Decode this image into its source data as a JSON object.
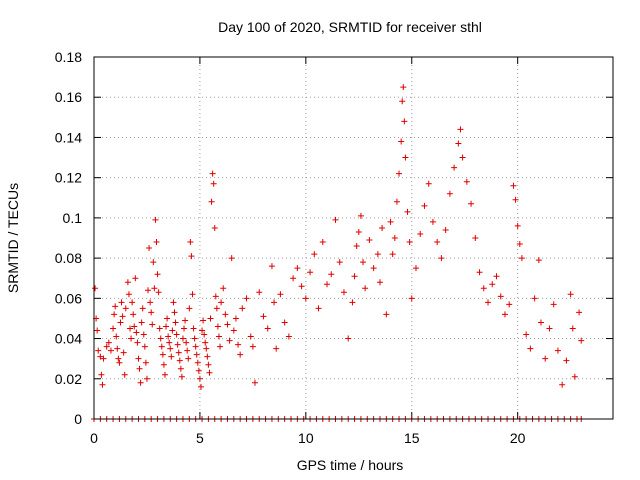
{
  "chart_data": {
    "type": "scatter",
    "title": "Day 100 of 2020, SRMTID for receiver sthl",
    "xlabel": "GPS time / hours",
    "ylabel": "SRMTID / TECUs",
    "xlim": [
      0,
      24.5
    ],
    "ylim": [
      0,
      0.18
    ],
    "xticks": [
      0,
      5,
      10,
      15,
      20
    ],
    "xtick_labels": [
      "0",
      "5",
      "10",
      "15",
      "20"
    ],
    "yticks": [
      0,
      0.02,
      0.04,
      0.06,
      0.08,
      0.1,
      0.12,
      0.14,
      0.16,
      0.18
    ],
    "ytick_labels": [
      "0",
      "0.02",
      "0.04",
      "0.06",
      "0.08",
      "0.1",
      "0.12",
      "0.14",
      "0.16",
      "0.18"
    ],
    "grid": true,
    "marker": "+",
    "color": "#e00000",
    "series": [
      {
        "name": "SRMTID",
        "points": [
          [
            0.05,
            0.065
          ],
          [
            0.1,
            0.05
          ],
          [
            0.15,
            0.044
          ],
          [
            0.2,
            0.034
          ],
          [
            0.3,
            0.031
          ],
          [
            0.35,
            0.022
          ],
          [
            0.4,
            0.017
          ],
          [
            0.45,
            0.03
          ],
          [
            0.6,
            0.036
          ],
          [
            0.7,
            0.038
          ],
          [
            0.8,
            0.034
          ],
          [
            0.9,
            0.045
          ],
          [
            0.95,
            0.052
          ],
          [
            1.0,
            0.056
          ],
          [
            1.05,
            0.041
          ],
          [
            1.1,
            0.035
          ],
          [
            1.15,
            0.03
          ],
          [
            1.2,
            0.028
          ],
          [
            1.25,
            0.048
          ],
          [
            1.3,
            0.058
          ],
          [
            1.35,
            0.051
          ],
          [
            1.4,
            0.033
          ],
          [
            1.45,
            0.022
          ],
          [
            1.5,
            0.055
          ],
          [
            1.6,
            0.068
          ],
          [
            1.65,
            0.062
          ],
          [
            1.7,
            0.045
          ],
          [
            1.75,
            0.04
          ],
          [
            1.8,
            0.058
          ],
          [
            1.85,
            0.052
          ],
          [
            1.9,
            0.046
          ],
          [
            1.95,
            0.07
          ],
          [
            2.0,
            0.043
          ],
          [
            2.05,
            0.038
          ],
          [
            2.1,
            0.03
          ],
          [
            2.15,
            0.025
          ],
          [
            2.2,
            0.018
          ],
          [
            2.25,
            0.048
          ],
          [
            2.3,
            0.055
          ],
          [
            2.35,
            0.042
          ],
          [
            2.4,
            0.036
          ],
          [
            2.45,
            0.028
          ],
          [
            2.5,
            0.02
          ],
          [
            2.55,
            0.064
          ],
          [
            2.6,
            0.085
          ],
          [
            2.65,
            0.058
          ],
          [
            2.7,
            0.053
          ],
          [
            2.75,
            0.047
          ],
          [
            2.8,
            0.078
          ],
          [
            2.85,
            0.065
          ],
          [
            2.9,
            0.099
          ],
          [
            2.95,
            0.088
          ],
          [
            3.0,
            0.072
          ],
          [
            3.05,
            0.063
          ],
          [
            3.1,
            0.045
          ],
          [
            3.15,
            0.04
          ],
          [
            3.2,
            0.036
          ],
          [
            3.25,
            0.032
          ],
          [
            3.3,
            0.027
          ],
          [
            3.35,
            0.022
          ],
          [
            3.4,
            0.046
          ],
          [
            3.45,
            0.05
          ],
          [
            3.5,
            0.041
          ],
          [
            3.55,
            0.038
          ],
          [
            3.6,
            0.035
          ],
          [
            3.65,
            0.031
          ],
          [
            3.7,
            0.044
          ],
          [
            3.75,
            0.058
          ],
          [
            3.8,
            0.053
          ],
          [
            3.85,
            0.048
          ],
          [
            3.9,
            0.042
          ],
          [
            3.95,
            0.037
          ],
          [
            4.0,
            0.033
          ],
          [
            4.05,
            0.029
          ],
          [
            4.1,
            0.025
          ],
          [
            4.15,
            0.021
          ],
          [
            4.2,
            0.04
          ],
          [
            4.25,
            0.045
          ],
          [
            4.3,
            0.049
          ],
          [
            4.35,
            0.038
          ],
          [
            4.4,
            0.034
          ],
          [
            4.45,
            0.03
          ],
          [
            4.5,
            0.055
          ],
          [
            4.55,
            0.088
          ],
          [
            4.6,
            0.081
          ],
          [
            4.65,
            0.062
          ],
          [
            4.7,
            0.045
          ],
          [
            4.75,
            0.04
          ],
          [
            4.8,
            0.036
          ],
          [
            4.85,
            0.032
          ],
          [
            4.9,
            0.028
          ],
          [
            4.95,
            0.024
          ],
          [
            5.0,
            0.02
          ],
          [
            5.05,
            0.016
          ],
          [
            5.1,
            0.044
          ],
          [
            5.15,
            0.049
          ],
          [
            5.2,
            0.042
          ],
          [
            5.25,
            0.038
          ],
          [
            5.3,
            0.035
          ],
          [
            5.35,
            0.031
          ],
          [
            5.4,
            0.027
          ],
          [
            5.45,
            0.023
          ],
          [
            5.5,
            0.05
          ],
          [
            5.55,
            0.108
          ],
          [
            5.6,
            0.122
          ],
          [
            5.65,
            0.117
          ],
          [
            5.7,
            0.095
          ],
          [
            5.75,
            0.061
          ],
          [
            5.8,
            0.055
          ],
          [
            5.85,
            0.046
          ],
          [
            5.9,
            0.041
          ],
          [
            5.95,
            0.036
          ],
          [
            6.0,
            0.058
          ],
          [
            6.1,
            0.065
          ],
          [
            6.2,
            0.052
          ],
          [
            6.3,
            0.047
          ],
          [
            6.4,
            0.039
          ],
          [
            6.5,
            0.08
          ],
          [
            6.6,
            0.044
          ],
          [
            6.7,
            0.05
          ],
          [
            6.8,
            0.037
          ],
          [
            6.9,
            0.032
          ],
          [
            7.0,
            0.055
          ],
          [
            7.2,
            0.06
          ],
          [
            7.4,
            0.041
          ],
          [
            7.5,
            0.036
          ],
          [
            7.6,
            0.018
          ],
          [
            7.8,
            0.063
          ],
          [
            8.0,
            0.051
          ],
          [
            8.2,
            0.045
          ],
          [
            8.4,
            0.076
          ],
          [
            8.5,
            0.058
          ],
          [
            8.6,
            0.035
          ],
          [
            8.8,
            0.062
          ],
          [
            9.0,
            0.048
          ],
          [
            9.2,
            0.041
          ],
          [
            9.4,
            0.07
          ],
          [
            9.6,
            0.075
          ],
          [
            9.8,
            0.066
          ],
          [
            10.0,
            0.06
          ],
          [
            10.2,
            0.073
          ],
          [
            10.4,
            0.082
          ],
          [
            10.6,
            0.055
          ],
          [
            10.8,
            0.088
          ],
          [
            11.0,
            0.067
          ],
          [
            11.2,
            0.072
          ],
          [
            11.4,
            0.099
          ],
          [
            11.6,
            0.078
          ],
          [
            11.8,
            0.063
          ],
          [
            12.0,
            0.04
          ],
          [
            12.2,
            0.058
          ],
          [
            12.3,
            0.071
          ],
          [
            12.4,
            0.086
          ],
          [
            12.5,
            0.093
          ],
          [
            12.6,
            0.101
          ],
          [
            12.7,
            0.078
          ],
          [
            12.8,
            0.065
          ],
          [
            13.0,
            0.089
          ],
          [
            13.2,
            0.075
          ],
          [
            13.4,
            0.082
          ],
          [
            13.5,
            0.068
          ],
          [
            13.6,
            0.095
          ],
          [
            13.8,
            0.052
          ],
          [
            14.0,
            0.098
          ],
          [
            14.1,
            0.082
          ],
          [
            14.2,
            0.09
          ],
          [
            14.3,
            0.108
          ],
          [
            14.4,
            0.122
          ],
          [
            14.5,
            0.138
          ],
          [
            14.55,
            0.158
          ],
          [
            14.6,
            0.165
          ],
          [
            14.65,
            0.148
          ],
          [
            14.7,
            0.13
          ],
          [
            14.8,
            0.103
          ],
          [
            14.9,
            0.088
          ],
          [
            15.0,
            0.06
          ],
          [
            15.2,
            0.075
          ],
          [
            15.4,
            0.092
          ],
          [
            15.6,
            0.106
          ],
          [
            15.8,
            0.117
          ],
          [
            16.0,
            0.098
          ],
          [
            16.2,
            0.088
          ],
          [
            16.4,
            0.08
          ],
          [
            16.6,
            0.094
          ],
          [
            16.8,
            0.112
          ],
          [
            17.0,
            0.125
          ],
          [
            17.2,
            0.137
          ],
          [
            17.3,
            0.144
          ],
          [
            17.4,
            0.13
          ],
          [
            17.6,
            0.118
          ],
          [
            17.8,
            0.107
          ],
          [
            18.0,
            0.09
          ],
          [
            18.2,
            0.073
          ],
          [
            18.4,
            0.065
          ],
          [
            18.6,
            0.058
          ],
          [
            18.8,
            0.067
          ],
          [
            19.0,
            0.071
          ],
          [
            19.2,
            0.061
          ],
          [
            19.4,
            0.052
          ],
          [
            19.6,
            0.057
          ],
          [
            19.8,
            0.116
          ],
          [
            19.9,
            0.109
          ],
          [
            20.0,
            0.096
          ],
          [
            20.1,
            0.087
          ],
          [
            20.2,
            0.08
          ],
          [
            20.4,
            0.042
          ],
          [
            20.6,
            0.035
          ],
          [
            20.8,
            0.06
          ],
          [
            21.0,
            0.079
          ],
          [
            21.1,
            0.048
          ],
          [
            21.3,
            0.03
          ],
          [
            21.5,
            0.045
          ],
          [
            21.7,
            0.057
          ],
          [
            21.9,
            0.034
          ],
          [
            22.1,
            0.017
          ],
          [
            22.3,
            0.029
          ],
          [
            22.5,
            0.062
          ],
          [
            22.6,
            0.045
          ],
          [
            22.7,
            0.021
          ],
          [
            22.9,
            0.053
          ],
          [
            23.0,
            0.039
          ]
        ],
        "zero_band_x": [
          0.0,
          0.3,
          0.6,
          0.9,
          1.2,
          1.5,
          1.8,
          2.1,
          2.4,
          2.7,
          3.0,
          3.3,
          3.6,
          3.9,
          4.2,
          4.5,
          4.8,
          5.1,
          5.4,
          5.7,
          6.0,
          6.3,
          6.6,
          6.9,
          7.2,
          7.5,
          7.8,
          8.1,
          8.4,
          8.7,
          9.0,
          9.3,
          9.6,
          9.9,
          10.2,
          10.5,
          10.8,
          11.1,
          11.4,
          11.7,
          12.0,
          12.3,
          12.6,
          12.9,
          13.2,
          13.5,
          13.8,
          14.1,
          14.4,
          14.7,
          15.0,
          15.3,
          15.6,
          15.9,
          16.2,
          16.5,
          16.8,
          17.1,
          17.4,
          17.7,
          18.0,
          18.3,
          18.6,
          18.9,
          19.2,
          19.5,
          19.8,
          20.1,
          20.4,
          20.7,
          21.0,
          21.3,
          21.6,
          21.9,
          22.2,
          22.5,
          22.8,
          23.0
        ]
      }
    ]
  }
}
